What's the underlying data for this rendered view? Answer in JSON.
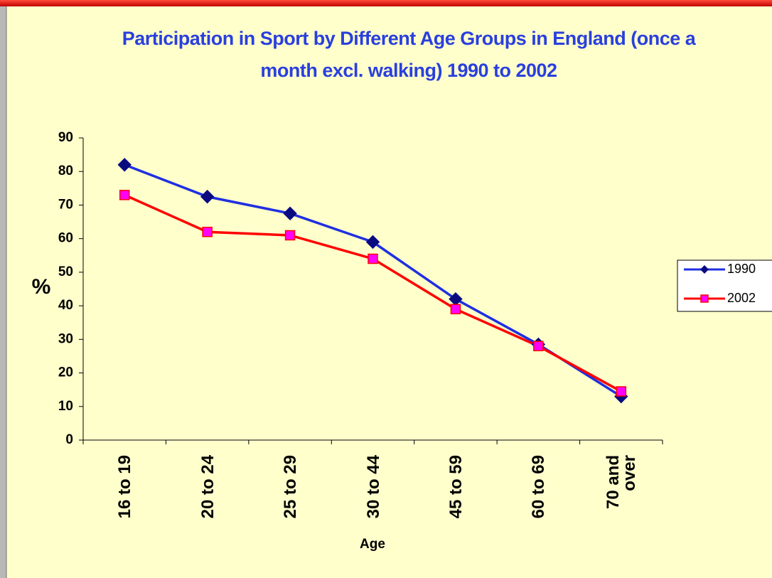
{
  "chart_data": {
    "type": "line",
    "title": "Participation in Sport by Different Age Groups in England (once a month excl. walking) 1990 to 2002",
    "x_label": "Age",
    "y_label": "%",
    "categories": [
      "16 to 19",
      "20 to 24",
      "25 to 29",
      "30 to 44",
      "45 to 59",
      "60 to 69",
      "70 and over"
    ],
    "series": [
      {
        "name": "1990",
        "color": "#1f2fe0",
        "marker": "diamond",
        "marker_color": "#0a0a80",
        "values": [
          82,
          72.5,
          67.5,
          59,
          42,
          28.5,
          13
        ]
      },
      {
        "name": "2002",
        "color": "#ff0000",
        "marker": "square",
        "marker_color": "#ff00ff",
        "values": [
          73,
          62,
          61,
          54,
          39,
          28,
          14.5
        ]
      }
    ],
    "ylim": [
      0,
      90
    ],
    "yticks": [
      0,
      10,
      20,
      30,
      40,
      50,
      60,
      70,
      80,
      90
    ],
    "legend": "right"
  }
}
